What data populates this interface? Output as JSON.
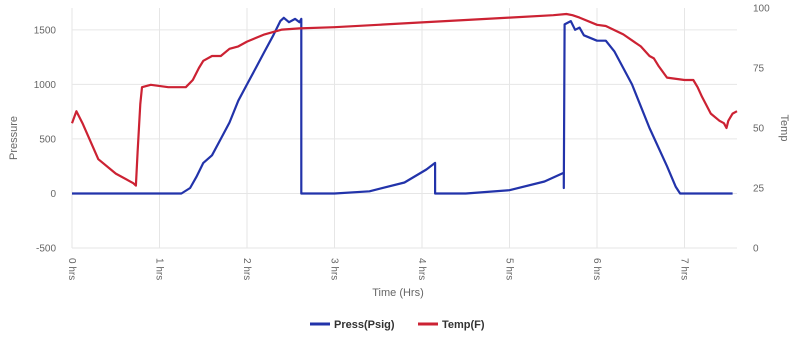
{
  "chart_data": {
    "type": "line",
    "xlabel": "Time (Hrs)",
    "ylabel_left": "Pressure",
    "ylabel_right": "Temp",
    "xlim": [
      0,
      7.6
    ],
    "ylim_left": [
      -500,
      1700
    ],
    "ylim_right": [
      0,
      100
    ],
    "x_ticks": [
      0,
      1,
      2,
      3,
      4,
      5,
      6,
      7
    ],
    "x_tick_labels": [
      "0 hrs",
      "1 hrs",
      "2 hrs",
      "3 hrs",
      "4 hrs",
      "5 hrs",
      "6 hrs",
      "7 hrs"
    ],
    "y_left_ticks": [
      -500,
      0,
      500,
      1000,
      1500
    ],
    "y_left_tick_labels": [
      "-500",
      "0",
      "500",
      "1000",
      "1500"
    ],
    "y_right_ticks": [
      0,
      25,
      50,
      75,
      100
    ],
    "y_right_tick_labels": [
      "0",
      "25",
      "50",
      "75",
      "100"
    ],
    "grid": true,
    "legend_position": "bottom",
    "series": [
      {
        "name": "Press(Psig)",
        "axis": "left",
        "color": "#2233aa",
        "points": [
          [
            0,
            0
          ],
          [
            1.25,
            0
          ],
          [
            1.35,
            50
          ],
          [
            1.42,
            150
          ],
          [
            1.5,
            280
          ],
          [
            1.6,
            350
          ],
          [
            1.7,
            500
          ],
          [
            1.8,
            650
          ],
          [
            1.9,
            850
          ],
          [
            2.0,
            1000
          ],
          [
            2.1,
            1150
          ],
          [
            2.2,
            1300
          ],
          [
            2.3,
            1450
          ],
          [
            2.38,
            1580
          ],
          [
            2.42,
            1610
          ],
          [
            2.48,
            1570
          ],
          [
            2.55,
            1600
          ],
          [
            2.6,
            1570
          ],
          [
            2.62,
            1600
          ],
          [
            2.62,
            0
          ],
          [
            3.0,
            0
          ],
          [
            3.4,
            20
          ],
          [
            3.8,
            100
          ],
          [
            4.05,
            220
          ],
          [
            4.15,
            280
          ],
          [
            4.15,
            0
          ],
          [
            4.5,
            0
          ],
          [
            5.0,
            30
          ],
          [
            5.4,
            110
          ],
          [
            5.62,
            190
          ],
          [
            5.62,
            50
          ],
          [
            5.63,
            1550
          ],
          [
            5.7,
            1580
          ],
          [
            5.75,
            1500
          ],
          [
            5.8,
            1520
          ],
          [
            5.85,
            1450
          ],
          [
            6.0,
            1400
          ],
          [
            6.1,
            1400
          ],
          [
            6.2,
            1300
          ],
          [
            6.4,
            1000
          ],
          [
            6.6,
            600
          ],
          [
            6.8,
            250
          ],
          [
            6.9,
            60
          ],
          [
            6.95,
            0
          ],
          [
            7.55,
            0
          ]
        ]
      },
      {
        "name": "Temp(F)",
        "axis": "right",
        "color": "#cc2233",
        "points": [
          [
            0,
            52
          ],
          [
            0.05,
            57
          ],
          [
            0.12,
            52
          ],
          [
            0.3,
            37
          ],
          [
            0.5,
            31
          ],
          [
            0.7,
            27
          ],
          [
            0.73,
            26
          ],
          [
            0.75,
            40
          ],
          [
            0.78,
            60
          ],
          [
            0.8,
            67
          ],
          [
            0.9,
            68
          ],
          [
            1.1,
            67
          ],
          [
            1.3,
            67
          ],
          [
            1.38,
            70
          ],
          [
            1.45,
            75
          ],
          [
            1.5,
            78
          ],
          [
            1.6,
            80
          ],
          [
            1.7,
            80
          ],
          [
            1.8,
            83
          ],
          [
            1.9,
            84
          ],
          [
            2.0,
            86
          ],
          [
            2.2,
            89
          ],
          [
            2.4,
            91
          ],
          [
            2.6,
            91.5
          ],
          [
            3.0,
            92
          ],
          [
            3.5,
            93
          ],
          [
            4.0,
            94
          ],
          [
            4.5,
            95
          ],
          [
            5.0,
            96
          ],
          [
            5.5,
            97
          ],
          [
            5.65,
            97.5
          ],
          [
            5.72,
            97
          ],
          [
            5.8,
            96
          ],
          [
            6.0,
            93
          ],
          [
            6.1,
            92.5
          ],
          [
            6.3,
            89
          ],
          [
            6.5,
            84
          ],
          [
            6.6,
            80
          ],
          [
            6.65,
            79
          ],
          [
            6.7,
            76
          ],
          [
            6.8,
            71
          ],
          [
            7.0,
            70
          ],
          [
            7.1,
            70
          ],
          [
            7.15,
            67
          ],
          [
            7.2,
            63
          ],
          [
            7.3,
            56
          ],
          [
            7.4,
            53
          ],
          [
            7.45,
            52
          ],
          [
            7.48,
            50
          ],
          [
            7.5,
            53
          ],
          [
            7.55,
            56
          ],
          [
            7.6,
            57
          ]
        ]
      }
    ]
  }
}
